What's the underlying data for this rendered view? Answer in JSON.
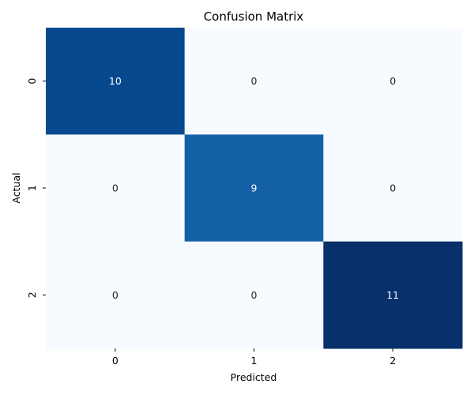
{
  "chart_data": {
    "type": "heatmap",
    "title": "Confusion Matrix",
    "xlabel": "Predicted",
    "ylabel": "Actual",
    "x_categories": [
      "0",
      "1",
      "2"
    ],
    "y_categories": [
      "0",
      "1",
      "2"
    ],
    "values": [
      [
        10,
        0,
        0
      ],
      [
        0,
        9,
        0
      ],
      [
        0,
        0,
        11
      ]
    ],
    "colormap": "Blues",
    "vmin": 0,
    "vmax": 11,
    "colorbar": false,
    "annotations": true
  }
}
